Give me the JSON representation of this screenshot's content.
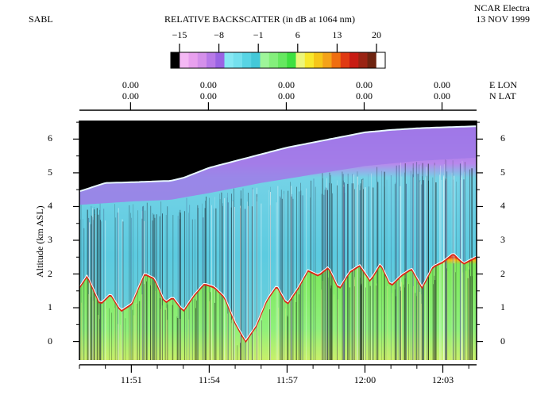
{
  "header": {
    "instrument": "SABL",
    "platform": "NCAR Electra",
    "date": "13 NOV 1999"
  },
  "colorbar": {
    "title": "RELATIVE BACKSCATTER (in dB at 1064 nm)",
    "ticks": [
      "−15",
      "−8",
      "−1",
      "6",
      "13",
      "20"
    ],
    "colors": [
      "#000000",
      "#f4b8f4",
      "#e8a0ee",
      "#d490ea",
      "#b87ae8",
      "#9a64e4",
      "#86e8f4",
      "#74e0ee",
      "#58d4e4",
      "#44c8d8",
      "#9ef59a",
      "#84ef7c",
      "#66e860",
      "#3ee040",
      "#ecf67a",
      "#f8e82c",
      "#f6c618",
      "#f4a218",
      "#ef6e10",
      "#e03a12",
      "#c81c14",
      "#9a2414",
      "#6e2410",
      "#ffffff"
    ]
  },
  "geo_axis": {
    "lon_label": "E LON",
    "lat_label": "N LAT",
    "lon_values": [
      "0.00",
      "0.00",
      "0.00",
      "0.00",
      "0.00"
    ],
    "lat_values": [
      "0.00",
      "0.00",
      "0.00",
      "0.00",
      "0.00"
    ]
  },
  "chart_data": {
    "type": "heatmap",
    "title": "RELATIVE BACKSCATTER (in dB at 1064 nm)",
    "xlabel": "",
    "ylabel": "Altitude (km ASL)",
    "x_ticks": [
      "11:51",
      "11:54",
      "11:57",
      "12:00",
      "12:03"
    ],
    "x_tick_minutes": [
      2,
      5,
      8,
      11,
      14
    ],
    "xlim_minutes": [
      0.0,
      15.3
    ],
    "y_ticks": [
      0,
      1,
      2,
      3,
      4,
      5,
      6
    ],
    "ylim": [
      -0.55,
      6.55
    ],
    "value_range_db": [
      -15,
      20
    ],
    "series": [
      {
        "name": "aircraft altitude (data top)",
        "x_minutes": [
          0.0,
          1.0,
          2.0,
          3.0,
          3.5,
          4.0,
          4.5,
          5.0,
          6.0,
          7.0,
          8.0,
          9.0,
          10.0,
          11.0,
          12.0,
          13.0,
          14.0,
          15.3
        ],
        "y_km": [
          4.45,
          4.7,
          4.72,
          4.75,
          4.76,
          4.85,
          5.0,
          5.15,
          5.35,
          5.55,
          5.75,
          5.9,
          6.05,
          6.2,
          6.27,
          6.32,
          6.35,
          6.38
        ]
      },
      {
        "name": "upper aerosol layer base",
        "x_minutes": [
          0.0,
          2.0,
          3.5,
          5.0,
          7.0,
          9.0,
          11.0,
          13.0,
          15.3
        ],
        "y_km": [
          4.05,
          4.15,
          4.2,
          4.4,
          4.7,
          4.95,
          5.2,
          5.35,
          5.45
        ]
      },
      {
        "name": "boundary layer top",
        "x_minutes": [
          0.0,
          0.3,
          0.8,
          1.2,
          1.6,
          2.0,
          2.5,
          2.9,
          3.3,
          3.6,
          4.0,
          4.4,
          4.8,
          5.2,
          5.6,
          6.0,
          6.4,
          6.8,
          7.2,
          7.6,
          8.0,
          8.4,
          8.8,
          9.2,
          9.6,
          10.0,
          10.4,
          10.8,
          11.2,
          11.6,
          12.0,
          12.4,
          12.8,
          13.2,
          13.6,
          14.0,
          14.4,
          14.8,
          15.3
        ],
        "y_km": [
          1.6,
          1.95,
          1.1,
          1.4,
          0.9,
          1.1,
          2.0,
          1.85,
          1.15,
          1.3,
          0.9,
          1.35,
          1.7,
          1.6,
          1.3,
          0.55,
          0.0,
          0.45,
          1.2,
          1.65,
          1.1,
          1.55,
          2.1,
          1.95,
          2.2,
          1.55,
          2.05,
          2.25,
          1.8,
          2.3,
          1.65,
          1.95,
          2.15,
          1.6,
          2.2,
          2.35,
          2.6,
          2.3,
          2.5
        ]
      }
    ]
  }
}
